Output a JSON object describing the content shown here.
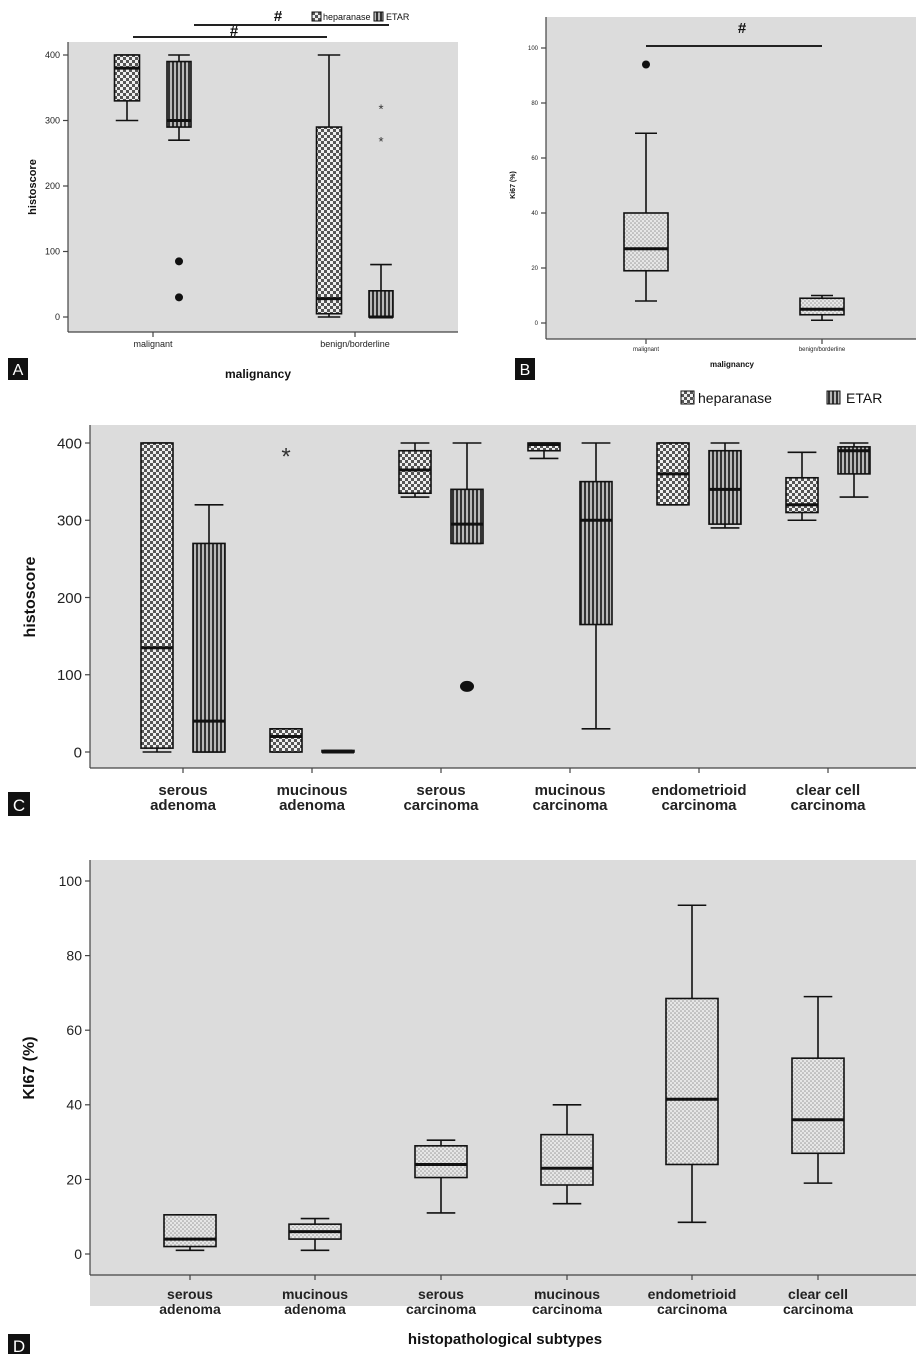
{
  "legend": {
    "heparanase": "heparanase",
    "etar": "ETAR"
  },
  "chart_data": [
    {
      "panel": "A",
      "type": "box",
      "xlabel": "malignancy",
      "ylabel": "histoscore",
      "ylim": [
        0,
        400
      ],
      "yticks": [
        0,
        100,
        200,
        300,
        400
      ],
      "categories": [
        "malignant",
        "benign/borderline"
      ],
      "series": [
        {
          "name": "heparanase",
          "pattern": "checker",
          "boxes": [
            {
              "min": 300,
              "q1": 330,
              "median": 380,
              "q3": 400,
              "max": 400,
              "outliers": [],
              "extremes": []
            },
            {
              "min": 0,
              "q1": 5,
              "median": 28,
              "q3": 290,
              "max": 400,
              "outliers": [],
              "extremes": []
            }
          ]
        },
        {
          "name": "ETAR",
          "pattern": "vstripe",
          "boxes": [
            {
              "min": 270,
              "q1": 290,
              "median": 300,
              "q3": 390,
              "max": 400,
              "outliers": [
                85,
                30
              ],
              "extremes": []
            },
            {
              "min": 0,
              "q1": 0,
              "median": 0,
              "q3": 40,
              "max": 80,
              "outliers": [],
              "extremes": [
                320,
                270
              ]
            }
          ]
        }
      ],
      "significance": [
        {
          "label": "#",
          "between": [
            "malignant heparanase",
            "benign/borderline heparanase"
          ]
        },
        {
          "label": "#",
          "between": [
            "malignant ETAR",
            "benign/borderline ETAR"
          ]
        }
      ]
    },
    {
      "panel": "B",
      "type": "box",
      "xlabel": "malignancy",
      "ylabel": "Ki67 (%)",
      "ylim": [
        0,
        100
      ],
      "yticks": [
        0,
        20,
        40,
        60,
        80,
        100
      ],
      "categories": [
        "malignant",
        "benign/borderline"
      ],
      "series": [
        {
          "name": "Ki67",
          "pattern": "dots",
          "boxes": [
            {
              "min": 8,
              "q1": 19,
              "median": 27,
              "q3": 40,
              "max": 69,
              "outliers": [
                94
              ],
              "extremes": []
            },
            {
              "min": 1,
              "q1": 3,
              "median": 5,
              "q3": 9,
              "max": 10,
              "outliers": [],
              "extremes": []
            }
          ]
        }
      ],
      "significance": [
        {
          "label": "#",
          "between": [
            "malignant",
            "benign/borderline"
          ]
        }
      ]
    },
    {
      "panel": "C",
      "type": "box",
      "xlabel": "histopathological subtypes",
      "ylabel": "histoscore",
      "ylim": [
        0,
        400
      ],
      "yticks": [
        0,
        100,
        200,
        300,
        400
      ],
      "categories": [
        [
          "serous",
          "adenoma"
        ],
        [
          "mucinous",
          "adenoma"
        ],
        [
          "serous",
          "carcinoma"
        ],
        [
          "mucinous",
          "carcinoma"
        ],
        [
          "endometrioid",
          "carcinoma"
        ],
        [
          "clear cell",
          "carcinoma"
        ]
      ],
      "series": [
        {
          "name": "heparanase",
          "pattern": "checker",
          "boxes": [
            {
              "min": 0,
              "q1": 5,
              "median": 135,
              "q3": 400,
              "max": 400,
              "outliers": [],
              "extremes": []
            },
            {
              "min": 0,
              "q1": 0,
              "median": 20,
              "q3": 30,
              "max": 30,
              "outliers": [],
              "extremes": [
                385
              ]
            },
            {
              "min": 330,
              "q1": 335,
              "median": 365,
              "q3": 390,
              "max": 400,
              "outliers": [],
              "extremes": []
            },
            {
              "min": 380,
              "q1": 390,
              "median": 398,
              "q3": 400,
              "max": 400,
              "outliers": [],
              "extremes": []
            },
            {
              "min": 320,
              "q1": 320,
              "median": 360,
              "q3": 400,
              "max": 400,
              "outliers": [],
              "extremes": []
            },
            {
              "min": 300,
              "q1": 310,
              "median": 320,
              "q3": 355,
              "max": 388,
              "outliers": [],
              "extremes": []
            }
          ]
        },
        {
          "name": "ETAR",
          "pattern": "vstripe",
          "boxes": [
            {
              "min": 0,
              "q1": 0,
              "median": 40,
              "q3": 270,
              "max": 320,
              "outliers": [],
              "extremes": []
            },
            {
              "min": 0,
              "q1": 0,
              "median": 0,
              "q3": 2,
              "max": 2,
              "outliers": [],
              "extremes": []
            },
            {
              "min": 270,
              "q1": 270,
              "median": 295,
              "q3": 340,
              "max": 400,
              "outliers": [
                85
              ],
              "extremes": []
            },
            {
              "min": 30,
              "q1": 165,
              "median": 300,
              "q3": 350,
              "max": 400,
              "outliers": [],
              "extremes": []
            },
            {
              "min": 290,
              "q1": 295,
              "median": 340,
              "q3": 390,
              "max": 400,
              "outliers": [],
              "extremes": []
            },
            {
              "min": 330,
              "q1": 360,
              "median": 390,
              "q3": 395,
              "max": 400,
              "outliers": [],
              "extremes": []
            }
          ]
        }
      ]
    },
    {
      "panel": "D",
      "type": "box",
      "xlabel": "histopathological subtypes",
      "ylabel": "KI67 (%)",
      "ylim": [
        0,
        100
      ],
      "yticks": [
        0,
        20,
        40,
        60,
        80,
        100
      ],
      "categories": [
        [
          "serous",
          "adenoma"
        ],
        [
          "mucinous",
          "adenoma"
        ],
        [
          "serous",
          "carcinoma"
        ],
        [
          "mucinous",
          "carcinoma"
        ],
        [
          "endometrioid",
          "carcinoma"
        ],
        [
          "clear cell",
          "carcinoma"
        ]
      ],
      "series": [
        {
          "name": "Ki67",
          "pattern": "dots",
          "boxes": [
            {
              "min": 1,
              "q1": 2,
              "median": 4,
              "q3": 10.5,
              "max": 10.5,
              "outliers": [],
              "extremes": []
            },
            {
              "min": 1,
              "q1": 4,
              "median": 6,
              "q3": 8,
              "max": 9.5,
              "outliers": [],
              "extremes": []
            },
            {
              "min": 11,
              "q1": 20.5,
              "median": 24,
              "q3": 29,
              "max": 30.5,
              "outliers": [],
              "extremes": []
            },
            {
              "min": 13.5,
              "q1": 18.5,
              "median": 23,
              "q3": 32,
              "max": 40,
              "outliers": [],
              "extremes": []
            },
            {
              "min": 8.5,
              "q1": 24,
              "median": 41.5,
              "q3": 68.5,
              "max": 93.5,
              "outliers": [],
              "extremes": []
            },
            {
              "min": 19,
              "q1": 27,
              "median": 36,
              "q3": 52.5,
              "max": 69,
              "outliers": [],
              "extremes": []
            }
          ]
        }
      ]
    }
  ]
}
